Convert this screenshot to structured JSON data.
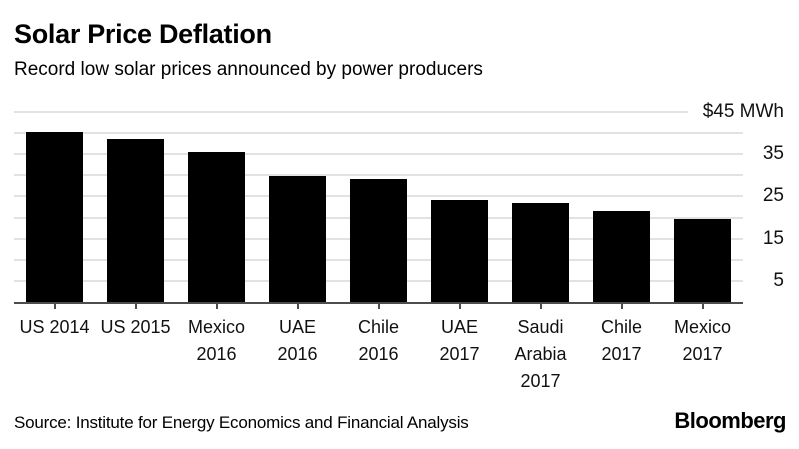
{
  "header": {
    "title": "Solar Price Deflation",
    "subtitle": "Record low solar prices announced by power producers"
  },
  "chart_data": {
    "type": "bar",
    "title": "Solar Price Deflation",
    "subtitle": "Record low solar prices announced by power producers",
    "categories": [
      "US 2014",
      "US 2015",
      "Mexico 2016",
      "UAE 2016",
      "Chile 2016",
      "UAE 2017",
      "Saudi Arabia 2017",
      "Chile 2017",
      "Mexico 2017"
    ],
    "category_lines": [
      [
        "US 2014"
      ],
      [
        "US 2015"
      ],
      [
        "Mexico",
        "2016"
      ],
      [
        "UAE",
        "2016"
      ],
      [
        "Chile",
        "2016"
      ],
      [
        "UAE",
        "2017"
      ],
      [
        "Saudi",
        "Arabia",
        "2017"
      ],
      [
        "Chile",
        "2017"
      ],
      [
        "Mexico",
        "2017"
      ]
    ],
    "values": [
      40.2,
      38.7,
      35.5,
      29.9,
      29.1,
      24.2,
      23.4,
      21.5,
      19.7
    ],
    "xlabel": "",
    "ylabel": "$45 MWh",
    "ylim": [
      0,
      45
    ],
    "grid": true,
    "legend": false,
    "y_axis": {
      "min": 0,
      "max": 45,
      "side": "right",
      "gridline_values": [
        45,
        40,
        35,
        30,
        25,
        20,
        15,
        10,
        5
      ],
      "ticks": [
        {
          "value": 45,
          "label": "$45 MWh"
        },
        {
          "value": 35,
          "label": "35"
        },
        {
          "value": 25,
          "label": "25"
        },
        {
          "value": 15,
          "label": "15"
        },
        {
          "value": 5,
          "label": "5"
        }
      ]
    },
    "bar_color": "#000000",
    "gridline_color": "#e2e2e2",
    "axis_color": "#4d4d4d",
    "text_color": "#111111",
    "background": "#ffffff"
  },
  "footer": {
    "source": "Source: Institute for Energy Economics and Financial Analysis",
    "brand": "Bloomberg"
  }
}
